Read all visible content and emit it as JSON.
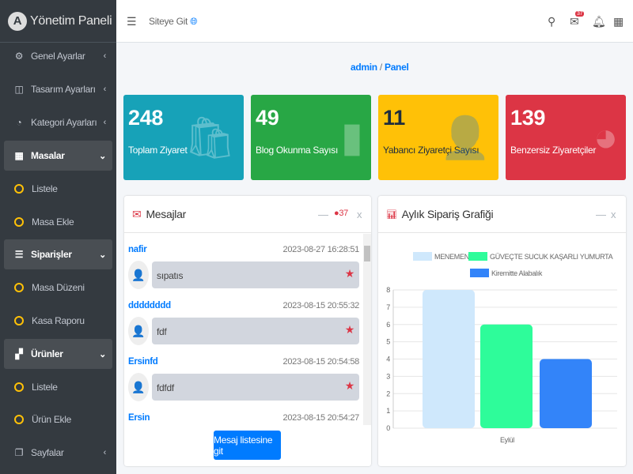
{
  "brand": {
    "title": "Yönetim Paneli",
    "logo": "A"
  },
  "sidebar": {
    "items": [
      {
        "label": "Genel Ayarlar",
        "icon": "gears-icon"
      },
      {
        "label": "Tasarım Ayarları",
        "icon": "columns-icon"
      },
      {
        "label": "Kategori Ayarları",
        "icon": "pie-icon"
      },
      {
        "label": "Masalar",
        "icon": "table-icon"
      },
      {
        "label": "Listele"
      },
      {
        "label": "Masa Ekle"
      },
      {
        "label": "Siparişler",
        "icon": "list-icon"
      },
      {
        "label": "Masa Düzeni"
      },
      {
        "label": "Kasa Raporu"
      },
      {
        "label": "Ürünler",
        "icon": "cubes-icon"
      },
      {
        "label": "Listele"
      },
      {
        "label": "Ürün Ekle"
      },
      {
        "label": "Sayfalar",
        "icon": "copy-icon"
      }
    ]
  },
  "topbar": {
    "site_link": "Siteye Git",
    "mail_badge": "37"
  },
  "breadcrumb": {
    "home": "admin",
    "sep": "/",
    "current": "Panel"
  },
  "cards": [
    {
      "value": "248",
      "label": "Toplam Ziyaret",
      "color": "#17a2b8",
      "icon": "🛍"
    },
    {
      "value": "49",
      "label": "Blog Okunma Sayısı",
      "color": "#28a745",
      "icon": "▮"
    },
    {
      "value": "11",
      "label": "Yabancı Ziyaretçi Sayısı",
      "color": "#ffc107",
      "icon": "👤"
    },
    {
      "value": "139",
      "label": "Benzersiz Ziyaretçiler",
      "color": "#dc3545",
      "icon": "◕"
    }
  ],
  "messages": {
    "title": "Mesajlar",
    "count": "37",
    "button": "Mesaj listesine git",
    "items": [
      {
        "user": "nafir",
        "time": "2023-08-27 16:28:51",
        "text": "sıpatıs"
      },
      {
        "user": "dddddddd",
        "time": "2023-08-15 20:55:32",
        "text": "fdf"
      },
      {
        "user": "Ersinfd",
        "time": "2023-08-15 20:54:58",
        "text": "fdfdf"
      },
      {
        "user": "Ersin",
        "time": "2023-08-15 20:54:27",
        "text": ""
      }
    ]
  },
  "chart_panel": {
    "title": "Aylık Sipariş Grafiği"
  },
  "chart_data": {
    "type": "bar",
    "title": "Aylık Sipariş Grafiği",
    "categories": [
      "Eylül"
    ],
    "series": [
      {
        "name": "MENEMEN",
        "values": [
          8
        ],
        "color": "#cfe8fc"
      },
      {
        "name": "GÜVEÇTE SUCUK KAŞARLI YUMURTA",
        "values": [
          6
        ],
        "color": "#2efc9a"
      },
      {
        "name": "Kiremitte Alabalık",
        "values": [
          4
        ],
        "color": "#3384f9"
      }
    ],
    "ylim": [
      0,
      8
    ],
    "yticks": [
      "0",
      "1",
      "2",
      "3",
      "4",
      "5",
      "6",
      "7",
      "8"
    ],
    "legend": "top"
  }
}
